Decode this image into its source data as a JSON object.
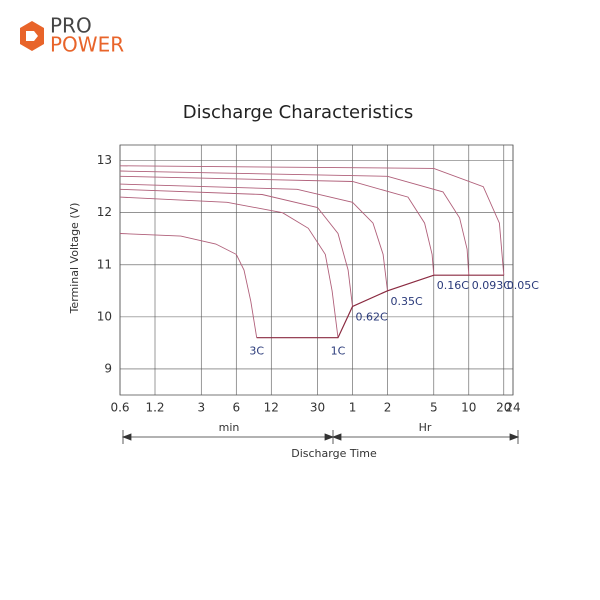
{
  "logo": {
    "line1": "PRO",
    "line2": "POWER"
  },
  "chart_data": {
    "type": "line",
    "title": "Discharge Characteristics",
    "x_label": "Discharge Time",
    "y_label": "Terminal Voltage  (V)",
    "x_unit_left": "min",
    "x_unit_right": "Hr",
    "log_x": true,
    "grid": true,
    "xlim": [
      0.6,
      1440
    ],
    "ylim": [
      8.5,
      13.3
    ],
    "xticks": [
      0.6,
      1.2,
      3,
      6,
      12,
      30,
      {
        "value": 60,
        "label": "1"
      },
      {
        "value": 120,
        "label": "2"
      },
      {
        "value": 300,
        "label": "5"
      },
      {
        "value": 600,
        "label": "10"
      },
      {
        "value": 1200,
        "label": "20"
      },
      {
        "value": 1440,
        "label": "24"
      }
    ],
    "yticks": [
      9,
      10,
      11,
      12,
      13
    ],
    "series": [
      {
        "name": "3C",
        "color": "#b0607a",
        "x": [
          0.6,
          2,
          4,
          6,
          7,
          8,
          9
        ],
        "values": [
          11.6,
          11.55,
          11.4,
          11.2,
          10.9,
          10.3,
          9.6
        ]
      },
      {
        "name": "1C",
        "color": "#b0607a",
        "x": [
          0.6,
          5,
          15,
          25,
          35,
          40,
          45
        ],
        "values": [
          12.3,
          12.2,
          12.0,
          11.7,
          11.2,
          10.5,
          9.6
        ]
      },
      {
        "name": "0.62C",
        "color": "#b0607a",
        "x": [
          0.6,
          10,
          30,
          45,
          55,
          60
        ],
        "values": [
          12.45,
          12.35,
          12.1,
          11.6,
          10.9,
          10.2
        ]
      },
      {
        "name": "0.35C",
        "color": "#b0607a",
        "x": [
          0.6,
          20,
          60,
          90,
          110,
          120
        ],
        "values": [
          12.55,
          12.45,
          12.2,
          11.8,
          11.2,
          10.5
        ]
      },
      {
        "name": "0.16C",
        "color": "#b0607a",
        "x": [
          0.6,
          60,
          180,
          250,
          290,
          300
        ],
        "values": [
          12.7,
          12.6,
          12.3,
          11.8,
          11.2,
          10.8
        ]
      },
      {
        "name": "0.093C",
        "color": "#b0607a",
        "x": [
          0.6,
          120,
          360,
          500,
          580,
          600
        ],
        "values": [
          12.8,
          12.7,
          12.4,
          11.9,
          11.3,
          10.8
        ]
      },
      {
        "name": "0.05C",
        "color": "#b0607a",
        "x": [
          0.6,
          300,
          800,
          1100,
          1200
        ],
        "values": [
          12.9,
          12.85,
          12.5,
          11.8,
          10.8
        ]
      }
    ],
    "cutoff": {
      "color": "#8a2a40",
      "x": [
        9,
        45,
        60,
        120,
        300,
        1200
      ],
      "values": [
        9.6,
        9.6,
        10.2,
        10.5,
        10.8,
        10.8
      ]
    }
  }
}
